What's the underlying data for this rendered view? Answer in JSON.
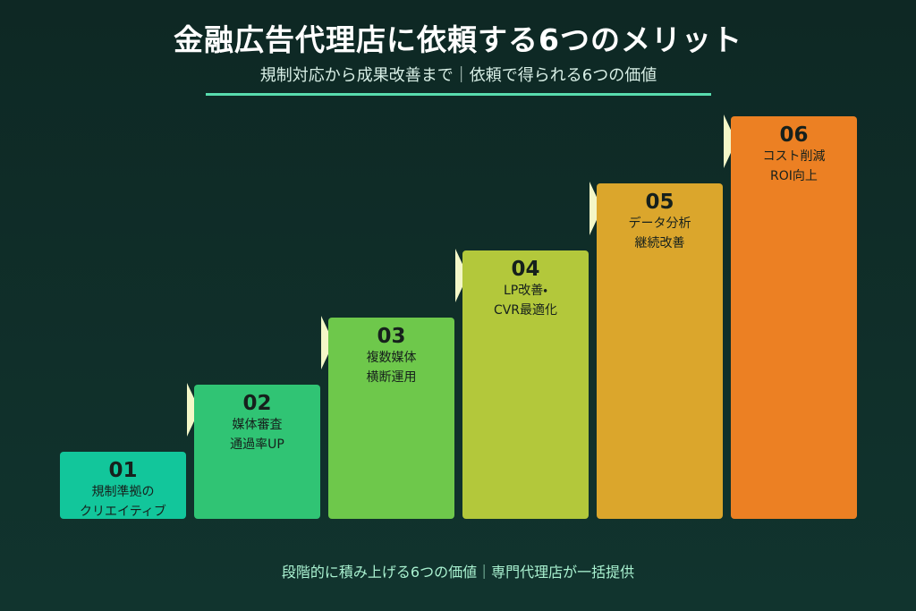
{
  "header": {
    "title": "金融広告代理店に依頼する6つのメリット",
    "subtitle": "規制対応から成果改善まで｜依頼で得られる6つの価値"
  },
  "steps": [
    {
      "number": "01",
      "lines": [
        "規制準拠の",
        "クリエイティブ"
      ]
    },
    {
      "number": "02",
      "lines": [
        "媒体審査",
        "通過率UP"
      ]
    },
    {
      "number": "03",
      "lines": [
        "複数媒体",
        "横断運用"
      ]
    },
    {
      "number": "04",
      "lines": [
        "LP改善・",
        "CVR最適化"
      ]
    },
    {
      "number": "05",
      "lines": [
        "データ分析",
        "継続改善"
      ]
    },
    {
      "number": "06",
      "lines": [
        "コスト削減",
        "ROI向上"
      ]
    }
  ],
  "footer": "段階的に積み上げる6つの価値｜専門代理店が一括提供"
}
